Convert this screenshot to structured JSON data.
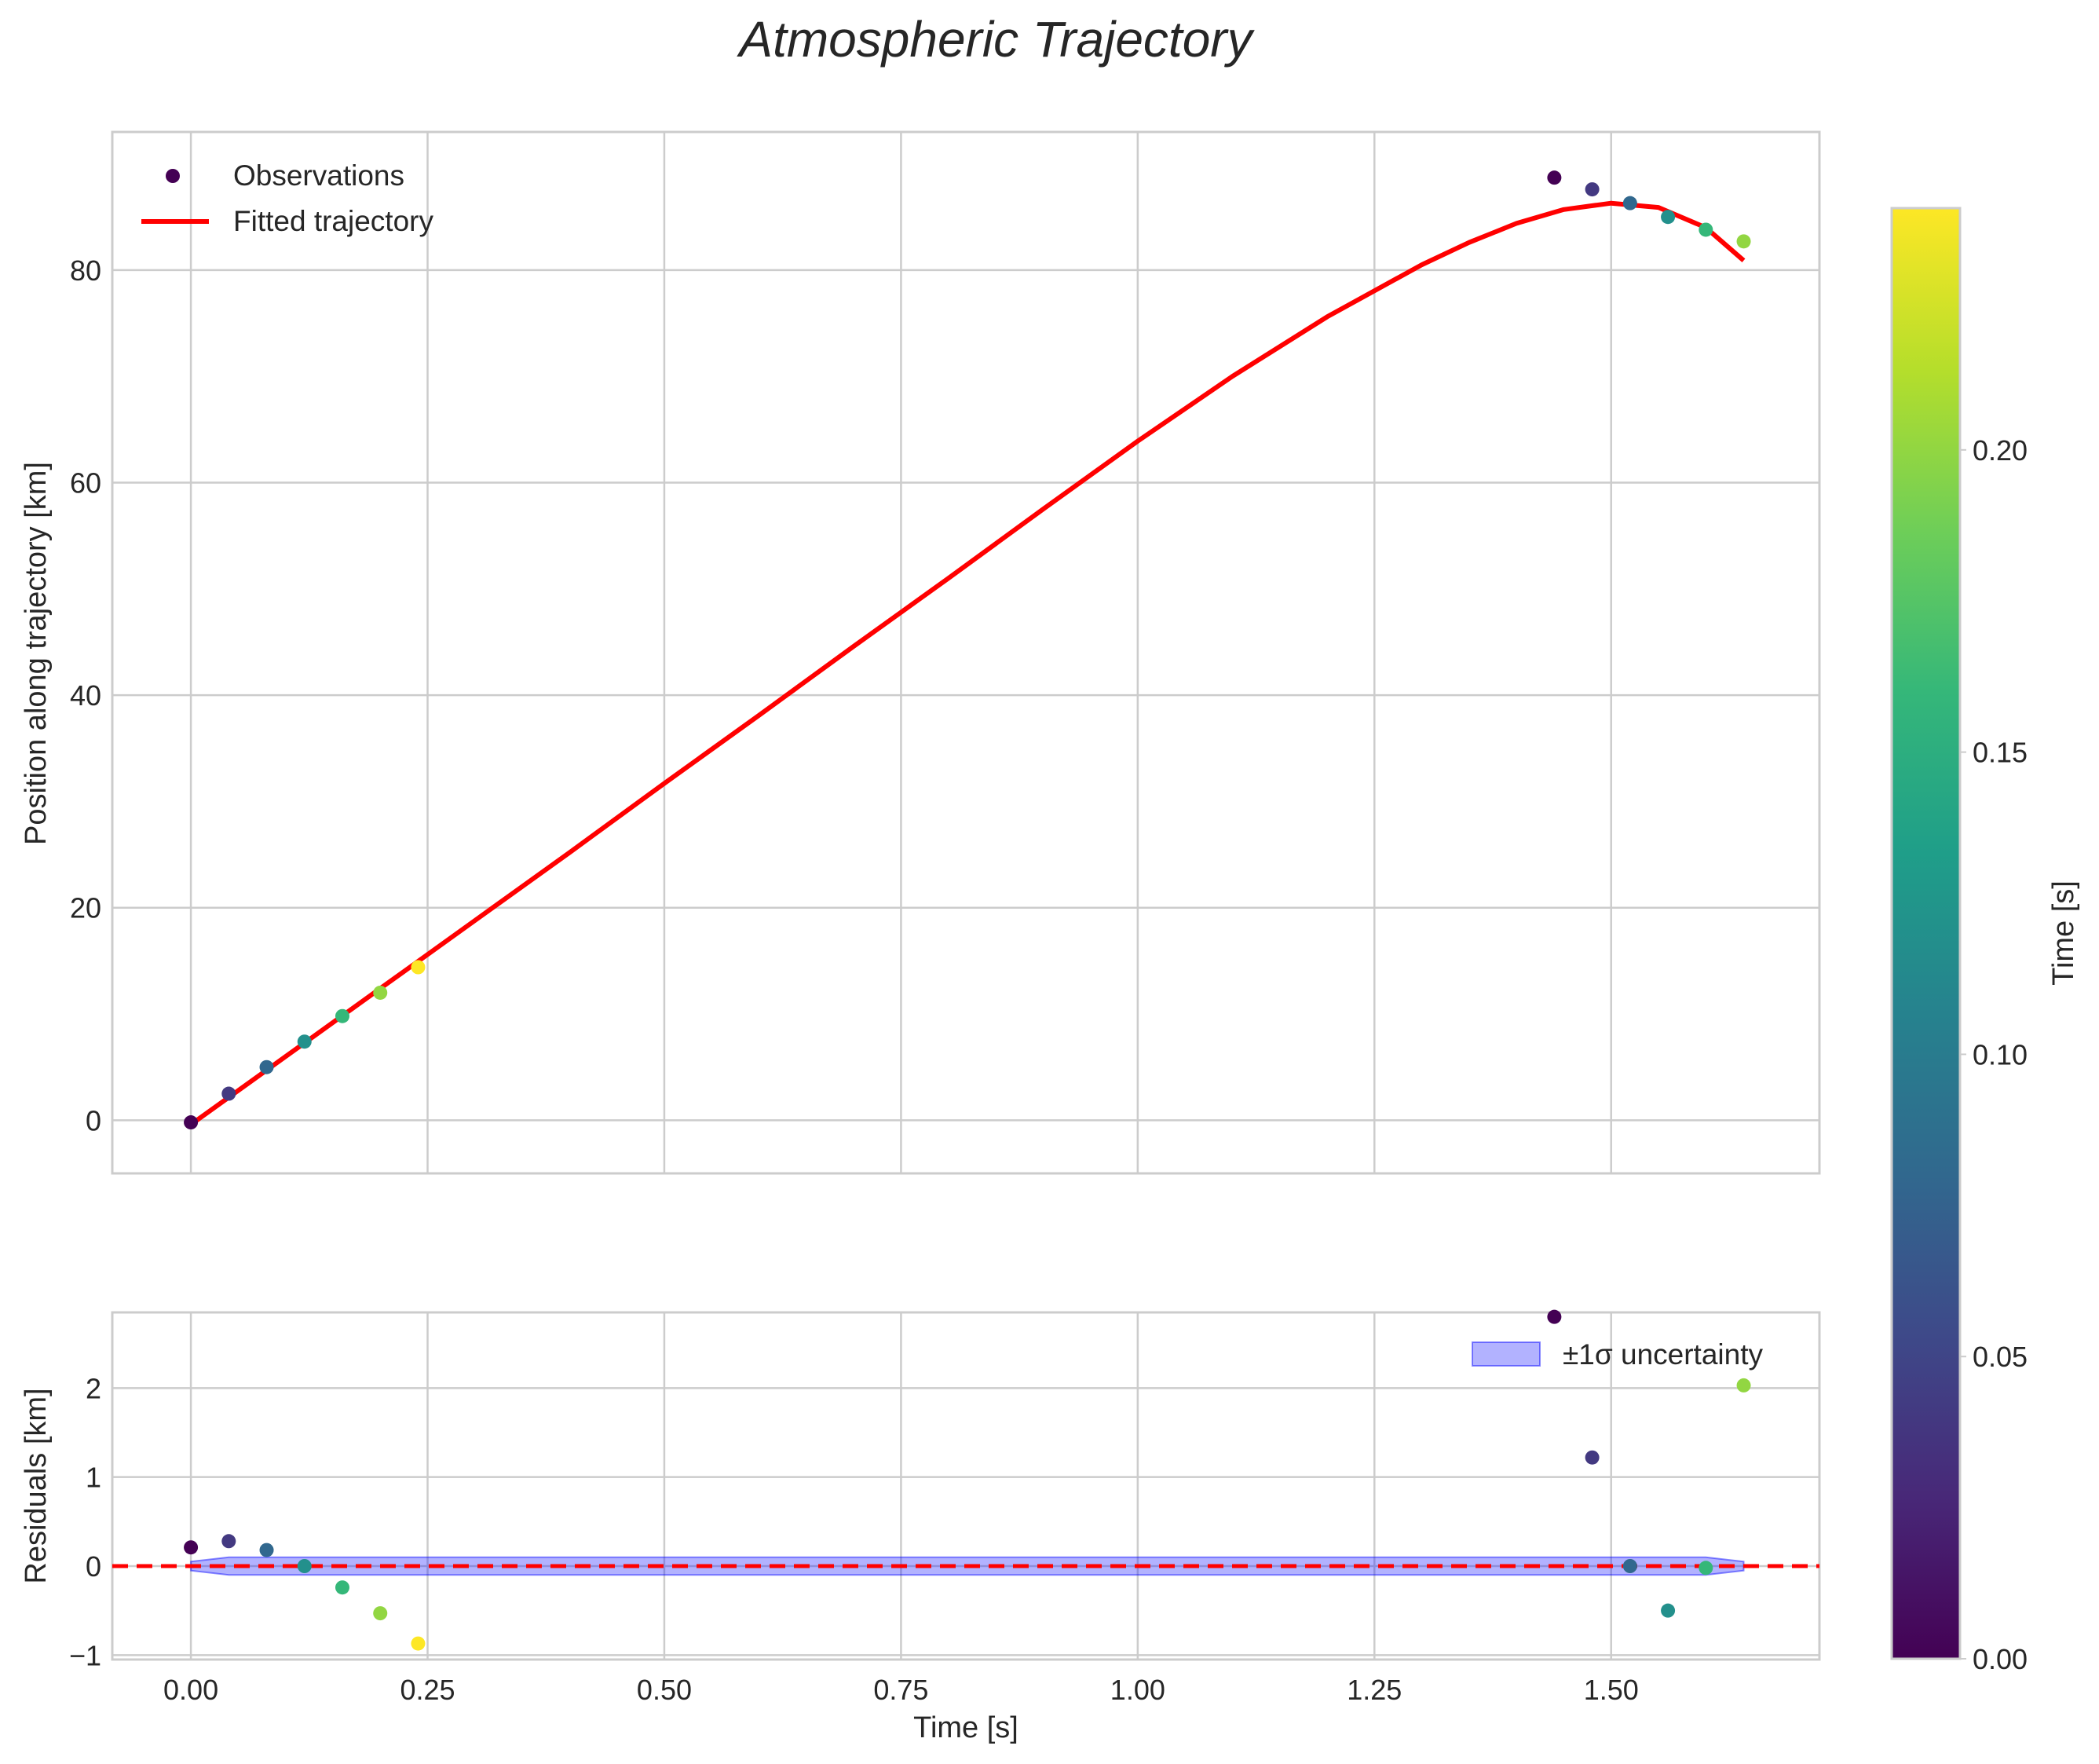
{
  "chart_data": [
    {
      "type": "scatter",
      "title": "Atmospheric Trajectory",
      "xlabel": "",
      "ylabel": "Position along trajectory [km]",
      "xlim": [
        -0.083,
        1.72
      ],
      "ylim": [
        -5,
        93
      ],
      "xticks": [
        0.0,
        0.25,
        0.5,
        0.75,
        1.0,
        1.25,
        1.5
      ],
      "yticks": [
        0,
        20,
        40,
        60,
        80
      ],
      "ytick_labels": [
        "0",
        "20",
        "40",
        "60",
        "80"
      ],
      "legend": {
        "position": "upper-left",
        "entries": [
          "Observations",
          "Fitted trajectory"
        ]
      },
      "series": [
        {
          "name": "Observations",
          "kind": "scatter",
          "x": [
            0.0,
            0.04,
            0.08,
            0.12,
            0.16,
            0.2,
            0.24,
            1.44,
            1.48,
            1.52,
            1.56,
            1.6,
            1.64
          ],
          "y": [
            -0.2,
            2.5,
            5.0,
            7.4,
            9.8,
            12.0,
            14.4,
            88.7,
            87.6,
            86.3,
            85.0,
            83.8,
            82.7
          ],
          "color_values": [
            0.0,
            0.04,
            0.08,
            0.12,
            0.16,
            0.2,
            0.24,
            0.0,
            0.04,
            0.08,
            0.12,
            0.16,
            0.2
          ]
        },
        {
          "name": "Fitted trajectory",
          "kind": "line",
          "color": "#ff0000",
          "x": [
            0.0,
            0.1,
            0.2,
            0.3,
            0.4,
            0.5,
            0.6,
            0.7,
            0.8,
            0.9,
            1.0,
            1.1,
            1.2,
            1.3,
            1.35,
            1.4,
            1.45,
            1.5,
            1.55,
            1.6,
            1.64
          ],
          "y": [
            -0.4,
            6.0,
            12.4,
            18.8,
            25.2,
            31.7,
            38.1,
            44.6,
            51.0,
            57.5,
            63.9,
            70.0,
            75.6,
            80.5,
            82.6,
            84.4,
            85.7,
            86.3,
            85.9,
            84.0,
            80.9
          ]
        }
      ]
    },
    {
      "type": "scatter",
      "title": "",
      "xlabel": "Time [s]",
      "ylabel": "Residuals [km]",
      "xlim": [
        -0.083,
        1.72
      ],
      "ylim": [
        -1.05,
        2.85
      ],
      "xticks": [
        0.0,
        0.25,
        0.5,
        0.75,
        1.0,
        1.25,
        1.5
      ],
      "xtick_labels": [
        "0.00",
        "0.25",
        "0.50",
        "0.75",
        "1.00",
        "1.25",
        "1.50"
      ],
      "yticks": [
        -1,
        0,
        1,
        2
      ],
      "ytick_labels": [
        "−1",
        "0",
        "1",
        "2"
      ],
      "legend": {
        "position": "upper-right",
        "entries": [
          "±1σ uncertainty"
        ]
      },
      "zero_line": {
        "y": 0,
        "color": "#ff0000",
        "style": "dashed"
      },
      "uncertainty_band": {
        "name": "±1σ uncertainty",
        "color": "#0000ff",
        "x": [
          0.0,
          0.04,
          0.08,
          1.56,
          1.6,
          1.64
        ],
        "upper": [
          0.05,
          0.1,
          0.1,
          0.1,
          0.1,
          0.05
        ],
        "lower": [
          -0.05,
          -0.1,
          -0.1,
          -0.1,
          -0.1,
          -0.05
        ]
      },
      "series": [
        {
          "name": "Residuals",
          "kind": "scatter",
          "x": [
            0.0,
            0.04,
            0.08,
            0.12,
            0.16,
            0.2,
            0.24,
            1.44,
            1.48,
            1.52,
            1.56,
            1.6,
            1.64
          ],
          "y": [
            0.21,
            0.28,
            0.18,
            0.0,
            -0.24,
            -0.53,
            -0.87,
            2.8,
            1.22,
            0.0,
            -0.5,
            -0.02,
            2.03
          ],
          "color_values": [
            0.0,
            0.04,
            0.08,
            0.12,
            0.16,
            0.2,
            0.24,
            0.0,
            0.04,
            0.08,
            0.12,
            0.16,
            0.2
          ]
        }
      ]
    },
    {
      "type": "colorbar",
      "label": "Time [s]",
      "range": [
        0.0,
        0.24
      ],
      "ticks": [
        0.0,
        0.05,
        0.1,
        0.15,
        0.2
      ],
      "tick_labels": [
        "0.00",
        "0.05",
        "0.10",
        "0.15",
        "0.20"
      ],
      "colormap": "viridis",
      "colormap_stops": [
        "#440154",
        "#482878",
        "#3e4989",
        "#31688e",
        "#26828e",
        "#1f9e89",
        "#35b779",
        "#6ece58",
        "#b5de2b",
        "#fde725"
      ]
    }
  ]
}
